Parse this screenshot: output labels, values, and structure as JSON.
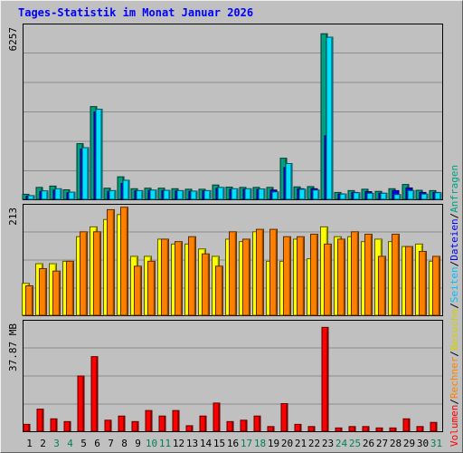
{
  "window": {
    "title": "Tages-Statistik im Monat Januar 2026"
  },
  "chart_data": [
    {
      "type": "bar",
      "panel": "requests-files-pages",
      "y_max_label": "6257",
      "ylim": [
        0,
        6600
      ],
      "categories": [
        "1",
        "2",
        "3",
        "4",
        "5",
        "6",
        "7",
        "8",
        "9",
        "10",
        "11",
        "12",
        "13",
        "14",
        "15",
        "16",
        "17",
        "18",
        "19",
        "20",
        "21",
        "22",
        "23",
        "24",
        "25",
        "26",
        "27",
        "28",
        "29",
        "30",
        "31"
      ],
      "series": [
        {
          "name": "Anfragen",
          "color": "#00a080",
          "values": [
            190,
            450,
            500,
            360,
            2100,
            3500,
            420,
            850,
            400,
            420,
            420,
            400,
            380,
            380,
            540,
            460,
            450,
            450,
            450,
            1550,
            470,
            480,
            6250,
            260,
            330,
            380,
            300,
            400,
            560,
            340,
            330
          ]
        },
        {
          "name": "Dateien",
          "color": "#0000ff",
          "values": [
            120,
            300,
            350,
            250,
            1900,
            3300,
            300,
            600,
            320,
            340,
            330,
            320,
            300,
            320,
            420,
            380,
            380,
            370,
            350,
            1200,
            400,
            400,
            2400,
            200,
            260,
            290,
            230,
            330,
            430,
            260,
            260
          ]
        },
        {
          "name": "Seiten",
          "color": "#00e0ff",
          "values": [
            140,
            320,
            400,
            270,
            1950,
            3400,
            330,
            720,
            330,
            350,
            340,
            330,
            310,
            330,
            450,
            400,
            400,
            390,
            280,
            1350,
            380,
            350,
            6120,
            200,
            250,
            230,
            230,
            180,
            330,
            200,
            250
          ]
        }
      ]
    },
    {
      "type": "bar",
      "panel": "visits-sites",
      "y_max_label": "213",
      "ylim": [
        0,
        225
      ],
      "categories": [
        "1",
        "2",
        "3",
        "4",
        "5",
        "6",
        "7",
        "8",
        "9",
        "10",
        "11",
        "12",
        "13",
        "14",
        "15",
        "16",
        "17",
        "18",
        "19",
        "20",
        "21",
        "22",
        "23",
        "24",
        "25",
        "26",
        "27",
        "28",
        "29",
        "30",
        "31"
      ],
      "series": [
        {
          "name": "Besuche",
          "color": "#ffff00",
          "values": [
            65,
            105,
            105,
            110,
            160,
            180,
            195,
            205,
            120,
            120,
            155,
            145,
            145,
            135,
            120,
            155,
            150,
            170,
            110,
            110,
            155,
            115,
            180,
            160,
            160,
            150,
            155,
            150,
            140,
            145,
            110
          ]
        },
        {
          "name": "Rechner",
          "color": "#ff8000",
          "values": [
            60,
            95,
            90,
            110,
            170,
            170,
            215,
            220,
            100,
            110,
            155,
            150,
            160,
            125,
            100,
            170,
            155,
            175,
            175,
            160,
            160,
            165,
            145,
            155,
            170,
            165,
            120,
            165,
            140,
            130,
            120
          ]
        }
      ]
    },
    {
      "type": "bar",
      "panel": "volume",
      "y_max_label": "37.87 MB",
      "ylim": [
        0,
        40
      ],
      "categories": [
        "1",
        "2",
        "3",
        "4",
        "5",
        "6",
        "7",
        "8",
        "9",
        "10",
        "11",
        "12",
        "13",
        "14",
        "15",
        "16",
        "17",
        "18",
        "19",
        "20",
        "21",
        "22",
        "23",
        "24",
        "25",
        "26",
        "27",
        "28",
        "29",
        "30",
        "31"
      ],
      "series": [
        {
          "name": "Volumen",
          "color": "#ff0000",
          "values": [
            2.5,
            8,
            4.5,
            3.5,
            20,
            27,
            4,
            5.5,
            3.5,
            7.5,
            5.5,
            7.5,
            2,
            5.5,
            10.2,
            3.5,
            4,
            5.5,
            1.7,
            10,
            2.5,
            1.7,
            37.6,
            1.2,
            1.7,
            1.7,
            1.2,
            1.2,
            4.5,
            1.7,
            3.2
          ]
        }
      ]
    }
  ],
  "x_axis": {
    "days": [
      "1",
      "2",
      "3",
      "4",
      "5",
      "6",
      "7",
      "8",
      "9",
      "10",
      "11",
      "12",
      "13",
      "14",
      "15",
      "16",
      "17",
      "18",
      "19",
      "20",
      "21",
      "22",
      "23",
      "24",
      "25",
      "26",
      "27",
      "28",
      "29",
      "30",
      "31"
    ],
    "weekend_days": [
      "3",
      "4",
      "10",
      "11",
      "17",
      "18",
      "24",
      "25",
      "31"
    ],
    "weekday_color": "#000000",
    "weekend_color": "#00805b"
  },
  "legend": {
    "items": [
      {
        "label": "Volumen",
        "color": "#ff0000"
      },
      {
        "label": "Rechner",
        "color": "#ff8000"
      },
      {
        "label": "Besuche",
        "color": "#d0d000"
      },
      {
        "label": "Seiten",
        "color": "#00c0ff"
      },
      {
        "label": "Dateien",
        "color": "#0000ff"
      },
      {
        "label": "Anfragen",
        "color": "#00a080"
      }
    ],
    "separator": "/"
  }
}
